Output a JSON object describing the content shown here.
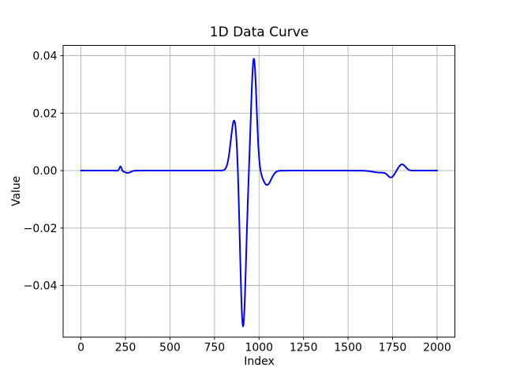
{
  "chart_data": {
    "type": "line",
    "title": "1D Data Curve",
    "xlabel": "Index",
    "ylabel": "Value",
    "x_ticks": [
      0,
      250,
      500,
      750,
      1000,
      1250,
      1500,
      1750,
      2000
    ],
    "x_tick_labels": [
      "0",
      "250",
      "500",
      "750",
      "1000",
      "1250",
      "1500",
      "1750",
      "2000"
    ],
    "y_ticks": [
      -0.04,
      -0.02,
      0.0,
      0.02,
      0.04
    ],
    "y_tick_labels": [
      "−0.04",
      "−0.02",
      "0.00",
      "0.02",
      "0.04"
    ],
    "xlim": [
      -100,
      2100
    ],
    "ylim": [
      -0.058,
      0.0436
    ],
    "grid": true,
    "legend": null,
    "grid_color": "#b0b0b0",
    "spine_color": "#000000",
    "background_color": "#ffffff",
    "series": [
      {
        "name": "1D data curve",
        "color": "#0000ff",
        "line_width": 2,
        "x_start": 0,
        "x_end": 2000,
        "baseline": 0.0,
        "gaussian_components": [
          {
            "center": 222,
            "amplitude": 0.0015,
            "width": 8
          },
          {
            "center": 262,
            "amplitude": -0.0008,
            "width": 24
          },
          {
            "center": 862,
            "amplitude": 0.018,
            "width": 28
          },
          {
            "center": 910,
            "amplitude": -0.0552,
            "width": 23
          },
          {
            "center": 971,
            "amplitude": 0.0391,
            "width": 21
          },
          {
            "center": 1045,
            "amplitude": -0.005,
            "width": 33
          },
          {
            "center": 1680,
            "amplitude": -0.0007,
            "width": 55
          },
          {
            "center": 1742,
            "amplitude": -0.0022,
            "width": 26
          },
          {
            "center": 1803,
            "amplitude": 0.0022,
            "width": 27
          }
        ],
        "key_points": [
          {
            "x": 0,
            "y": 0.0
          },
          {
            "x": 200,
            "y": 0.0
          },
          {
            "x": 222,
            "y": 0.0015
          },
          {
            "x": 262,
            "y": -0.0008
          },
          {
            "x": 350,
            "y": 0.0
          },
          {
            "x": 800,
            "y": 0.001
          },
          {
            "x": 862,
            "y": 0.0174
          },
          {
            "x": 885,
            "y": 0.0
          },
          {
            "x": 910,
            "y": -0.054
          },
          {
            "x": 950,
            "y": 0.0
          },
          {
            "x": 971,
            "y": 0.0388
          },
          {
            "x": 1016,
            "y": 0.0
          },
          {
            "x": 1045,
            "y": -0.005
          },
          {
            "x": 1140,
            "y": 0.0
          },
          {
            "x": 1650,
            "y": -0.0006
          },
          {
            "x": 1742,
            "y": -0.0024
          },
          {
            "x": 1772,
            "y": 0.0
          },
          {
            "x": 1803,
            "y": 0.0022
          },
          {
            "x": 1870,
            "y": 0.0
          },
          {
            "x": 2000,
            "y": 0.0
          }
        ]
      }
    ]
  }
}
